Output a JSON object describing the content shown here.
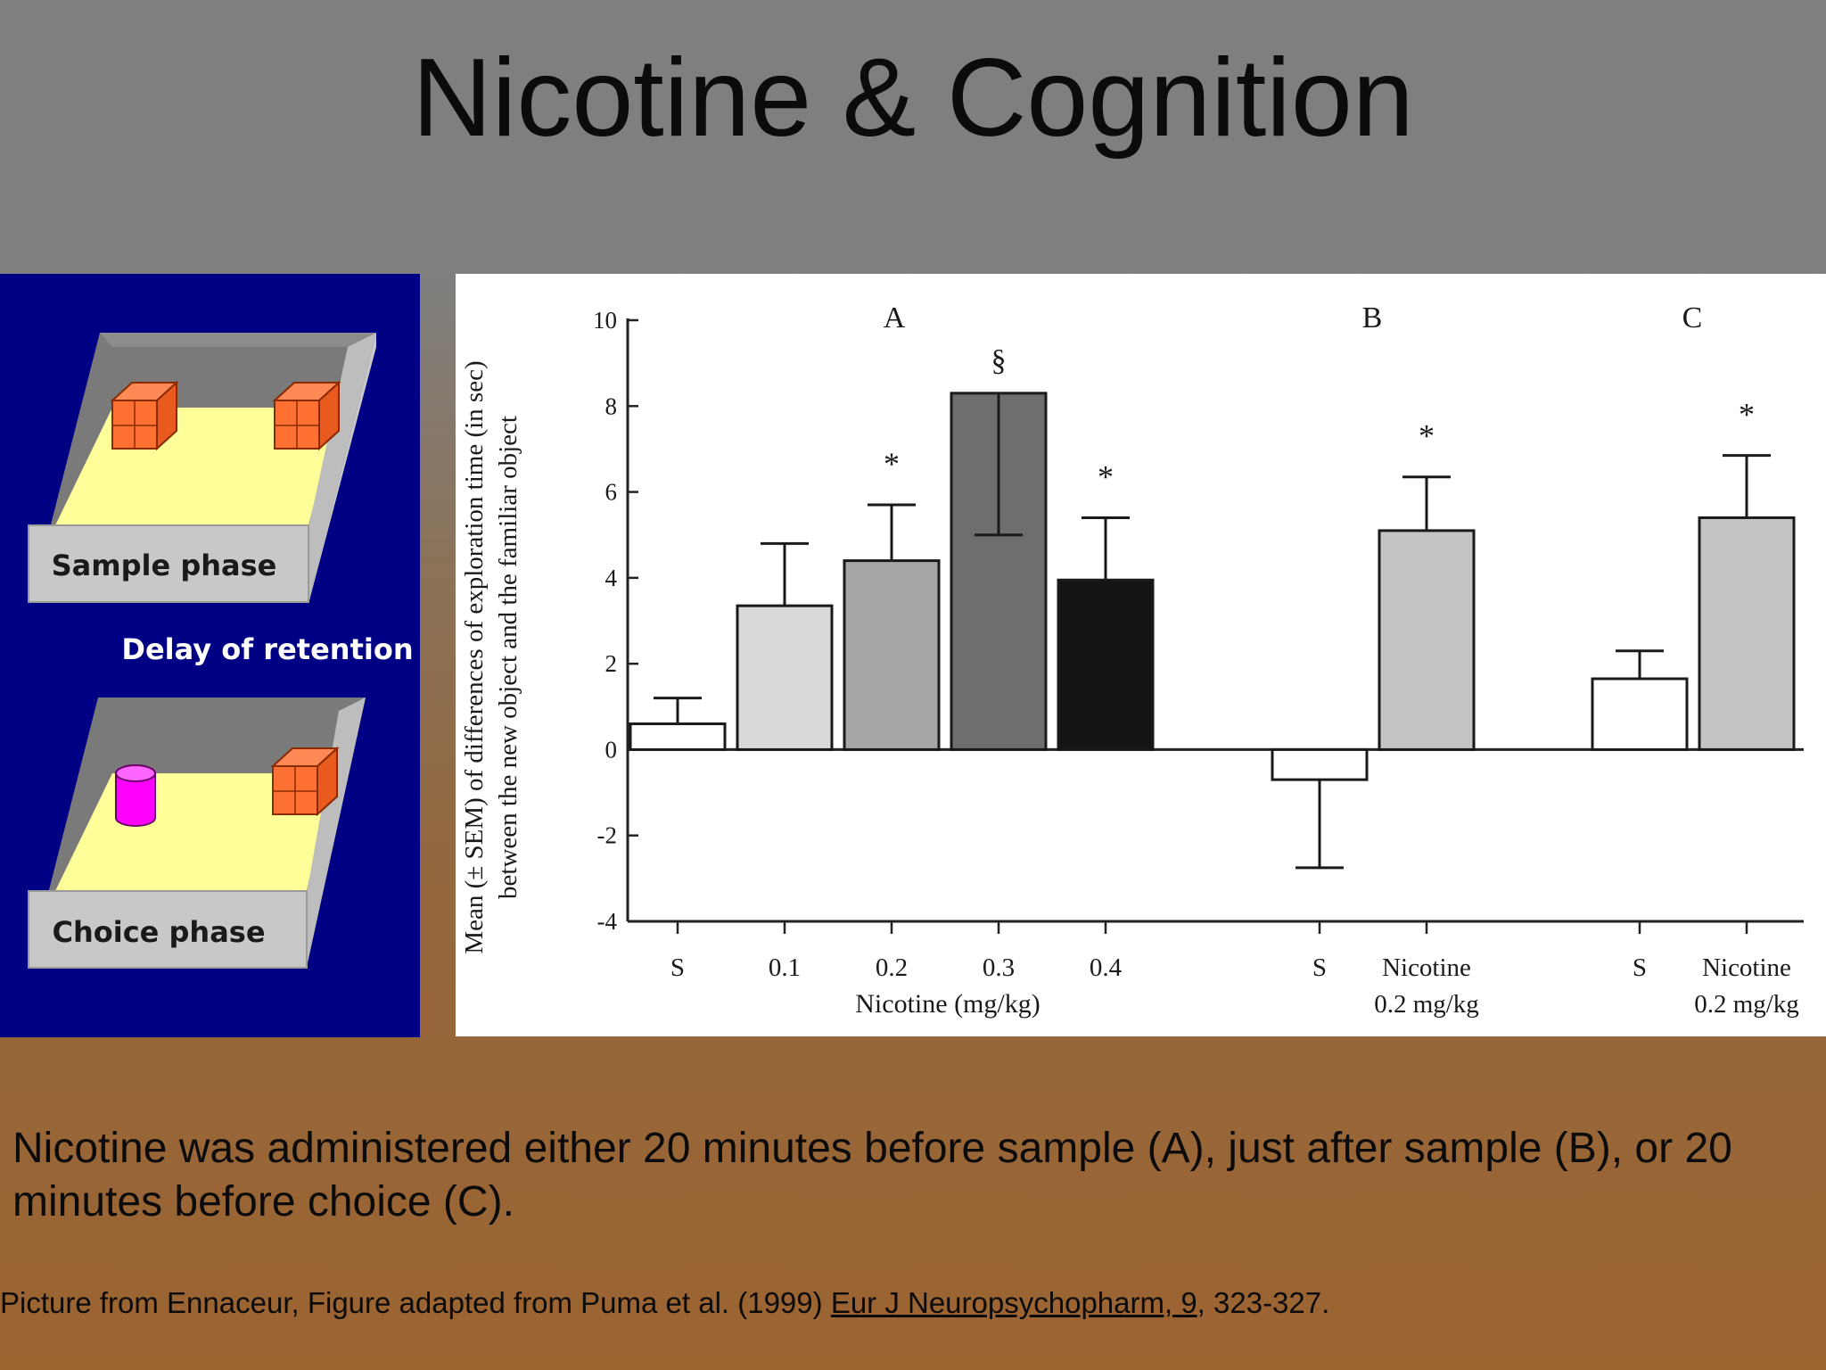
{
  "slide": {
    "title": "Nicotine & Cognition",
    "caption": "Nicotine was administered either 20 minutes before sample (A), just after sample (B), or 20 minutes before choice (C).",
    "credit_prefix": "Picture from Ennaceur, Figure adapted from Puma et al. (1999) ",
    "credit_journal": "Eur J Neuropsychopharm, 9",
    "credit_suffix": ", 323-327."
  },
  "diagram": {
    "sample_label": "Sample phase",
    "delay_label": "Delay of retention",
    "choice_label": "Choice phase",
    "icons": [
      "cube-icon",
      "cylinder-icon"
    ],
    "colors": {
      "background": "#000085",
      "floor": "#ffff99",
      "cube": "#ff7033",
      "cylinder": "#ff00ff"
    }
  },
  "chart_data": {
    "type": "bar",
    "ylabel_line1": "Mean (± SEM) of differences of exploration time (in sec)",
    "ylabel_line2": "between the new object and the familiar object",
    "ylim": [
      -4,
      10
    ],
    "yticks": [
      "10",
      "8",
      "6",
      "4",
      "2",
      "0",
      "-2",
      "-4"
    ],
    "groups": [
      {
        "label": "A",
        "xlabel": "Nicotine (mg/kg)",
        "bars": [
          {
            "tick": "S",
            "value": 0.6,
            "sem": 0.6,
            "marker": "",
            "fill": "#ffffff"
          },
          {
            "tick": "0.1",
            "value": 3.35,
            "sem": 1.45,
            "marker": "",
            "fill": "#d9d9d9"
          },
          {
            "tick": "0.2",
            "value": 4.4,
            "sem": 1.3,
            "marker": "*",
            "fill": "#a6a6a6"
          },
          {
            "tick": "0.3",
            "value": 8.3,
            "sem": 3.3,
            "marker": "§",
            "fill": "#6e6e6e"
          },
          {
            "tick": "0.4",
            "value": 3.95,
            "sem": 1.45,
            "marker": "*",
            "fill": "#141414"
          }
        ]
      },
      {
        "label": "B",
        "xlabel": "",
        "bars": [
          {
            "tick": "S",
            "value": -0.7,
            "sem": 2.05,
            "marker": "",
            "fill": "#ffffff"
          },
          {
            "tick": "Nicotine",
            "tick2": "0.2 mg/kg",
            "value": 5.1,
            "sem": 1.25,
            "marker": "*",
            "fill": "#c4c4c4"
          }
        ]
      },
      {
        "label": "C",
        "xlabel": "",
        "bars": [
          {
            "tick": "S",
            "value": 1.65,
            "sem": 0.65,
            "marker": "",
            "fill": "#ffffff"
          },
          {
            "tick": "Nicotine",
            "tick2": "0.2 mg/kg",
            "value": 5.4,
            "sem": 1.45,
            "marker": "*",
            "fill": "#c4c4c4"
          }
        ]
      }
    ]
  }
}
